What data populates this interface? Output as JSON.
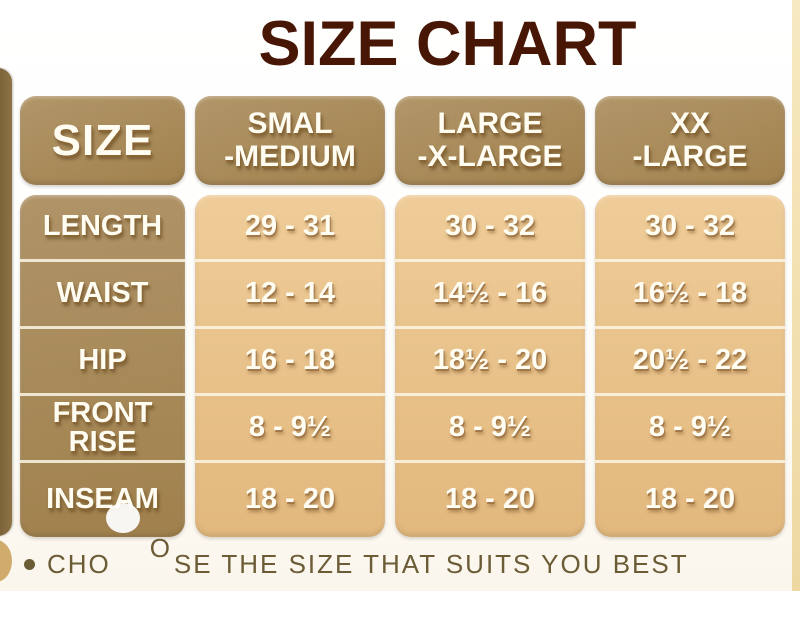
{
  "title": "SIZE CHART",
  "table": {
    "corner_header": "SIZE",
    "column_headers": [
      {
        "line1": "SMAL",
        "line2": "-MEDIUM"
      },
      {
        "line1": "LARGE",
        "line2": "-X-LARGE"
      },
      {
        "line1": "XX",
        "line2": "-LARGE"
      }
    ],
    "rows": [
      {
        "label": "LENGTH",
        "values": [
          "29 - 31",
          "30 - 32",
          "30 - 32"
        ]
      },
      {
        "label": "WAIST",
        "values": [
          "12 - 14",
          "14½ - 16",
          "16½ - 18"
        ]
      },
      {
        "label": "HIP",
        "values": [
          "16 - 18",
          "18½ - 20",
          "20½ - 22"
        ]
      },
      {
        "label": "FRONT RISE",
        "values": [
          "8 - 9½",
          "8 - 9½",
          "8 - 9½"
        ]
      },
      {
        "label": "INSEAM",
        "values": [
          "18 - 20",
          "18 - 20",
          "18 - 20"
        ]
      }
    ]
  },
  "footer": {
    "bullet": "•",
    "note_prefix": "CHO",
    "note_obscured_letter": "O",
    "note_suffix": "SE THE SIZE THAT SUITS YOU BEST"
  },
  "colors": {
    "title_text": "#481604",
    "header_cell_bg": "#a5875a",
    "data_cell_bg": "#e8c28c",
    "cell_text": "#fffdf2",
    "cell_text_shadow": "#8a6634",
    "row_separator": "#fcf6e5",
    "footer_text": "#6b5c36",
    "left_edge_strip": "#7d6336",
    "right_edge_strip": "#f0ddab"
  },
  "chart_data": {
    "type": "table",
    "title": "SIZE CHART",
    "columns": [
      "SIZE",
      "SMAL-MEDIUM",
      "LARGE-X-LARGE",
      "XX-LARGE"
    ],
    "rows": [
      [
        "LENGTH",
        "29 - 31",
        "30 - 32",
        "30 - 32"
      ],
      [
        "WAIST",
        "12 - 14",
        "14½ - 16",
        "16½ - 18"
      ],
      [
        "HIP",
        "16 - 18",
        "18½ - 20",
        "20½ - 22"
      ],
      [
        "FRONT RISE",
        "8 - 9½",
        "8 - 9½",
        "8 - 9½"
      ],
      [
        "INSEAM",
        "18 - 20",
        "18 - 20",
        "18 - 20"
      ]
    ],
    "note": "CHOOSE THE SIZE THAT SUITS YOU BEST",
    "layout": {
      "header_position": "top",
      "row_labels_position": "left",
      "grid": "rounded-cards"
    }
  }
}
